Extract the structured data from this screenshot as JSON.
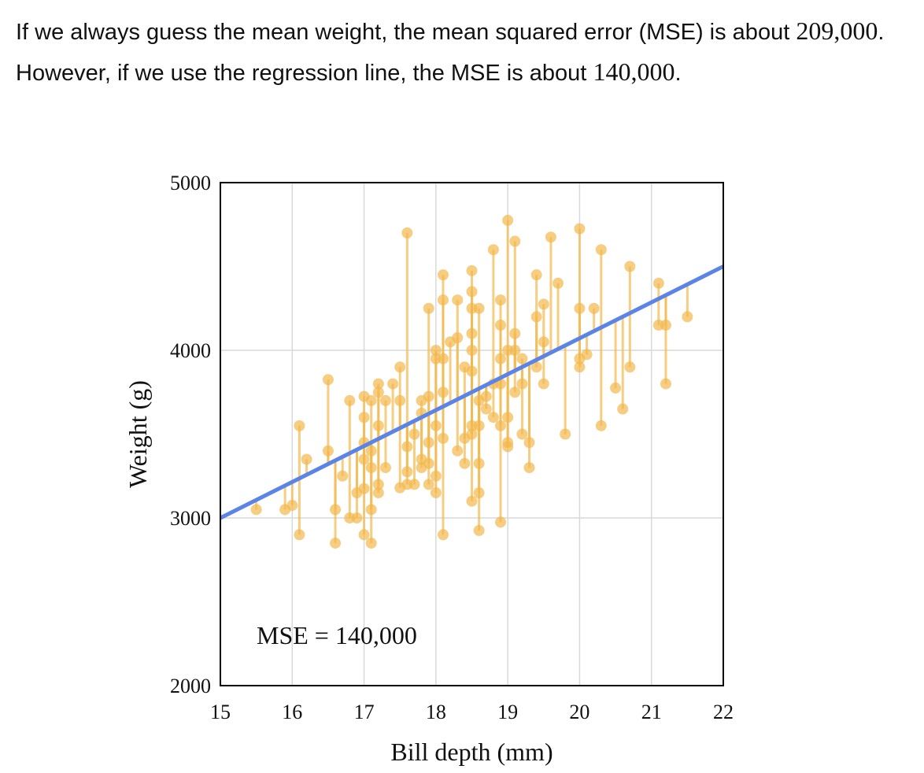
{
  "paragraph": {
    "part1": "If we always guess the mean weight, the mean squared error (MSE) is about ",
    "value1": "209,000",
    "part2": ". However, if we use the regression line, the MSE is about ",
    "value2": "140,000",
    "part3": "."
  },
  "colors": {
    "points": "#F2B84B",
    "residuals": "#F2B84B",
    "regression_line": "#5B83E8",
    "grid": "#d9d9d9",
    "frame": "#000000"
  },
  "chart_data": {
    "type": "scatter",
    "title": "",
    "xlabel": "Bill depth (mm)",
    "ylabel": "Weight (g)",
    "xlim": [
      15,
      22
    ],
    "ylim": [
      2000,
      5000
    ],
    "x_ticks": [
      "15",
      "16",
      "17",
      "18",
      "19",
      "20",
      "21",
      "22"
    ],
    "y_ticks": [
      "2000",
      "3000",
      "4000",
      "5000"
    ],
    "grid": true,
    "legend": "none",
    "regression_line": {
      "slope": 214.3,
      "intercept": -214.3
    },
    "annotation": "MSE = 140,000",
    "points": [
      [
        15.5,
        3050
      ],
      [
        15.9,
        3050
      ],
      [
        16.0,
        3075
      ],
      [
        16.1,
        3550
      ],
      [
        16.1,
        2900
      ],
      [
        16.2,
        3350
      ],
      [
        16.5,
        3825
      ],
      [
        16.5,
        3400
      ],
      [
        16.6,
        3050
      ],
      [
        16.6,
        2850
      ],
      [
        16.7,
        3250
      ],
      [
        16.8,
        3700
      ],
      [
        16.8,
        3000
      ],
      [
        16.9,
        3150
      ],
      [
        16.9,
        3000
      ],
      [
        17.0,
        3725
      ],
      [
        17.0,
        3600
      ],
      [
        17.0,
        3450
      ],
      [
        17.0,
        3350
      ],
      [
        17.0,
        3175
      ],
      [
        17.0,
        2900
      ],
      [
        17.1,
        3700
      ],
      [
        17.1,
        3400
      ],
      [
        17.1,
        3300
      ],
      [
        17.1,
        3050
      ],
      [
        17.1,
        2850
      ],
      [
        17.2,
        3800
      ],
      [
        17.2,
        3750
      ],
      [
        17.2,
        3550
      ],
      [
        17.2,
        3200
      ],
      [
        17.2,
        3150
      ],
      [
        17.3,
        3700
      ],
      [
        17.3,
        3300
      ],
      [
        17.4,
        3800
      ],
      [
        17.5,
        3900
      ],
      [
        17.5,
        3700
      ],
      [
        17.5,
        3180
      ],
      [
        17.6,
        4700
      ],
      [
        17.6,
        3425
      ],
      [
        17.6,
        3275
      ],
      [
        17.6,
        3200
      ],
      [
        17.7,
        3500
      ],
      [
        17.7,
        3200
      ],
      [
        17.8,
        3700
      ],
      [
        17.8,
        3625
      ],
      [
        17.8,
        3350
      ],
      [
        17.8,
        3300
      ],
      [
        17.9,
        4250
      ],
      [
        17.9,
        3725
      ],
      [
        17.9,
        3450
      ],
      [
        17.9,
        3325
      ],
      [
        17.9,
        3200
      ],
      [
        18.0,
        4000
      ],
      [
        18.0,
        3950
      ],
      [
        18.0,
        3550
      ],
      [
        18.0,
        3250
      ],
      [
        18.0,
        3150
      ],
      [
        18.1,
        4450
      ],
      [
        18.1,
        4300
      ],
      [
        18.1,
        3950
      ],
      [
        18.1,
        3750
      ],
      [
        18.1,
        3475
      ],
      [
        18.1,
        2900
      ],
      [
        18.2,
        4050
      ],
      [
        18.3,
        4300
      ],
      [
        18.3,
        4075
      ],
      [
        18.3,
        3400
      ],
      [
        18.4,
        3900
      ],
      [
        18.4,
        3475
      ],
      [
        18.4,
        3325
      ],
      [
        18.5,
        4475
      ],
      [
        18.5,
        4350
      ],
      [
        18.5,
        4250
      ],
      [
        18.5,
        4100
      ],
      [
        18.5,
        4000
      ],
      [
        18.5,
        3875
      ],
      [
        18.5,
        3550
      ],
      [
        18.5,
        3500
      ],
      [
        18.5,
        3100
      ],
      [
        18.6,
        4250
      ],
      [
        18.6,
        3700
      ],
      [
        18.6,
        3550
      ],
      [
        18.6,
        3325
      ],
      [
        18.6,
        3150
      ],
      [
        18.6,
        2925
      ],
      [
        18.7,
        3725
      ],
      [
        18.7,
        3650
      ],
      [
        18.8,
        4600
      ],
      [
        18.8,
        3800
      ],
      [
        18.8,
        3600
      ],
      [
        18.9,
        4300
      ],
      [
        18.9,
        4150
      ],
      [
        18.9,
        3950
      ],
      [
        18.9,
        3800
      ],
      [
        18.9,
        3550
      ],
      [
        18.9,
        2975
      ],
      [
        19.0,
        4775
      ],
      [
        19.0,
        4000
      ],
      [
        19.0,
        3600
      ],
      [
        19.0,
        3450
      ],
      [
        19.0,
        3425
      ],
      [
        19.1,
        4650
      ],
      [
        19.1,
        4100
      ],
      [
        19.1,
        4000
      ],
      [
        19.1,
        3750
      ],
      [
        19.2,
        3950
      ],
      [
        19.2,
        3800
      ],
      [
        19.2,
        3500
      ],
      [
        19.3,
        3450
      ],
      [
        19.3,
        3300
      ],
      [
        19.4,
        4450
      ],
      [
        19.4,
        4200
      ],
      [
        19.4,
        3900
      ],
      [
        19.5,
        4275
      ],
      [
        19.5,
        4050
      ],
      [
        19.5,
        3800
      ],
      [
        19.6,
        4675
      ],
      [
        19.7,
        4400
      ],
      [
        19.8,
        3500
      ],
      [
        20.0,
        4725
      ],
      [
        20.0,
        4250
      ],
      [
        20.0,
        3950
      ],
      [
        20.0,
        3900
      ],
      [
        20.1,
        3975
      ],
      [
        20.2,
        4250
      ],
      [
        20.3,
        4600
      ],
      [
        20.3,
        3550
      ],
      [
        20.5,
        3775
      ],
      [
        20.6,
        3650
      ],
      [
        20.7,
        4500
      ],
      [
        20.7,
        3900
      ],
      [
        21.1,
        4400
      ],
      [
        21.1,
        4150
      ],
      [
        21.2,
        4150
      ],
      [
        21.2,
        3800
      ],
      [
        21.5,
        4200
      ]
    ]
  }
}
